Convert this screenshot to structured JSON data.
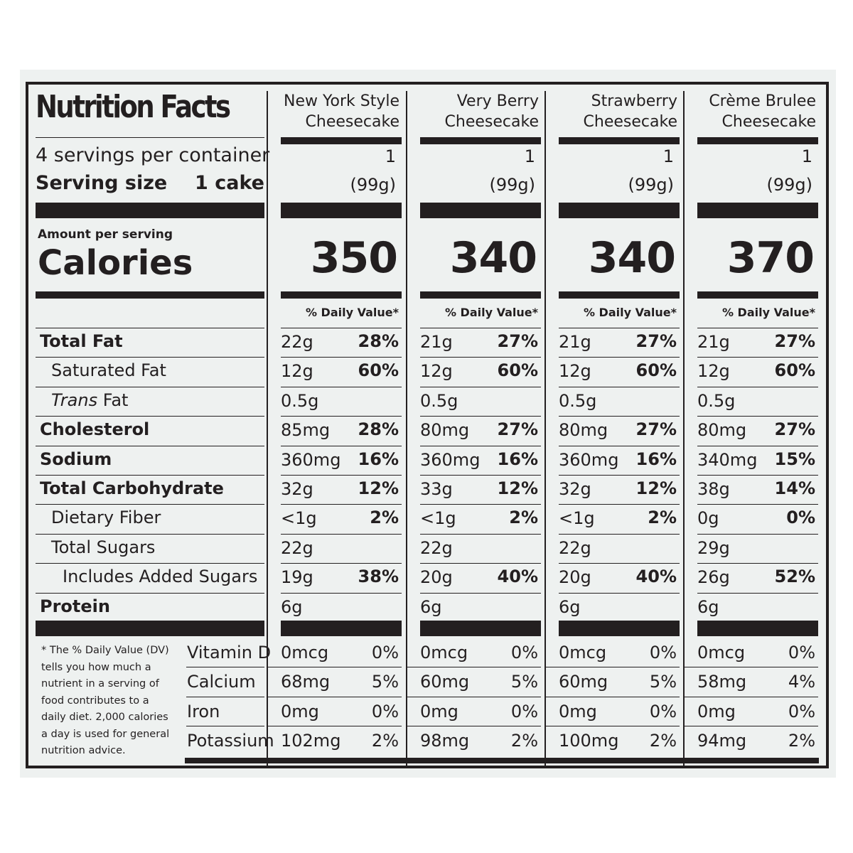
{
  "label": {
    "title": "Nutrition Facts",
    "servings_per_container": "4 servings per container",
    "serving_size_label": "Serving size",
    "serving_size_value": "1 cake",
    "amount_per_serving": "Amount per serving",
    "calories_label": "Calories",
    "dv_header": "% Daily Value*",
    "footnote": [
      "* The % Daily Value (DV)",
      "tells you how much a",
      "nutrient in a serving of",
      "food contributes to a",
      "daily diet. 2,000 calories",
      "a day is used for general",
      "nutrition advice."
    ]
  },
  "nutrient_labels": [
    {
      "text": "Total Fat",
      "bold": true,
      "indent": 0
    },
    {
      "text": "Saturated Fat",
      "bold": false,
      "indent": 1
    },
    {
      "text": "Trans Fat",
      "bold": false,
      "indent": 1,
      "italic_prefix": "Trans",
      "rest": " Fat"
    },
    {
      "text": "Cholesterol",
      "bold": true,
      "indent": 0
    },
    {
      "text": "Sodium",
      "bold": true,
      "indent": 0
    },
    {
      "text": "Total Carbohydrate",
      "bold": true,
      "indent": 0
    },
    {
      "text": "Dietary Fiber",
      "bold": false,
      "indent": 1
    },
    {
      "text": "Total Sugars",
      "bold": false,
      "indent": 1
    },
    {
      "text": "Includes Added Sugars",
      "bold": false,
      "indent": 2
    },
    {
      "text": "Protein",
      "bold": true,
      "indent": 0
    }
  ],
  "vitamin_labels": [
    "Vitamin D",
    "Calcium",
    "Iron",
    "Potassium"
  ],
  "products": [
    {
      "name_line1": "New York Style",
      "name_line2": "Cheesecake",
      "serving_qty": "1",
      "serving_grams": "(99g)",
      "calories": "350",
      "nutrients": [
        [
          "22g",
          "28%"
        ],
        [
          "12g",
          "60%"
        ],
        [
          "0.5g",
          ""
        ],
        [
          "85mg",
          "28%"
        ],
        [
          "360mg",
          "16%"
        ],
        [
          "32g",
          "12%"
        ],
        [
          "<1g",
          "2%"
        ],
        [
          "22g",
          ""
        ],
        [
          "19g",
          "38%"
        ],
        [
          "6g",
          ""
        ]
      ],
      "vitamins": [
        [
          "0mcg",
          "0%"
        ],
        [
          "68mg",
          "5%"
        ],
        [
          "0mg",
          "0%"
        ],
        [
          "102mg",
          "2%"
        ]
      ]
    },
    {
      "name_line1": "Very Berry",
      "name_line2": "Cheesecake",
      "serving_qty": "1",
      "serving_grams": "(99g)",
      "calories": "340",
      "nutrients": [
        [
          "21g",
          "27%"
        ],
        [
          "12g",
          "60%"
        ],
        [
          "0.5g",
          ""
        ],
        [
          "80mg",
          "27%"
        ],
        [
          "360mg",
          "16%"
        ],
        [
          "33g",
          "12%"
        ],
        [
          "<1g",
          "2%"
        ],
        [
          "22g",
          ""
        ],
        [
          "20g",
          "40%"
        ],
        [
          "6g",
          ""
        ]
      ],
      "vitamins": [
        [
          "0mcg",
          "0%"
        ],
        [
          "60mg",
          "5%"
        ],
        [
          "0mg",
          "0%"
        ],
        [
          "98mg",
          "2%"
        ]
      ]
    },
    {
      "name_line1": "Strawberry",
      "name_line2": "Cheesecake",
      "serving_qty": "1",
      "serving_grams": "(99g)",
      "calories": "340",
      "nutrients": [
        [
          "21g",
          "27%"
        ],
        [
          "12g",
          "60%"
        ],
        [
          "0.5g",
          ""
        ],
        [
          "80mg",
          "27%"
        ],
        [
          "360mg",
          "16%"
        ],
        [
          "32g",
          "12%"
        ],
        [
          "<1g",
          "2%"
        ],
        [
          "22g",
          ""
        ],
        [
          "20g",
          "40%"
        ],
        [
          "6g",
          ""
        ]
      ],
      "vitamins": [
        [
          "0mcg",
          "0%"
        ],
        [
          "60mg",
          "5%"
        ],
        [
          "0mg",
          "0%"
        ],
        [
          "100mg",
          "2%"
        ]
      ]
    },
    {
      "name_line1": "Crème Brulee",
      "name_line2": "Cheesecake",
      "serving_qty": "1",
      "serving_grams": "(99g)",
      "calories": "370",
      "nutrients": [
        [
          "21g",
          "27%"
        ],
        [
          "12g",
          "60%"
        ],
        [
          "0.5g",
          ""
        ],
        [
          "80mg",
          "27%"
        ],
        [
          "340mg",
          "15%"
        ],
        [
          "38g",
          "14%"
        ],
        [
          "0g",
          "0%"
        ],
        [
          "29g",
          ""
        ],
        [
          "26g",
          "52%"
        ],
        [
          "6g",
          ""
        ]
      ],
      "vitamins": [
        [
          "0mcg",
          "0%"
        ],
        [
          "58mg",
          "4%"
        ],
        [
          "0mg",
          "0%"
        ],
        [
          "94mg",
          "2%"
        ]
      ]
    }
  ]
}
